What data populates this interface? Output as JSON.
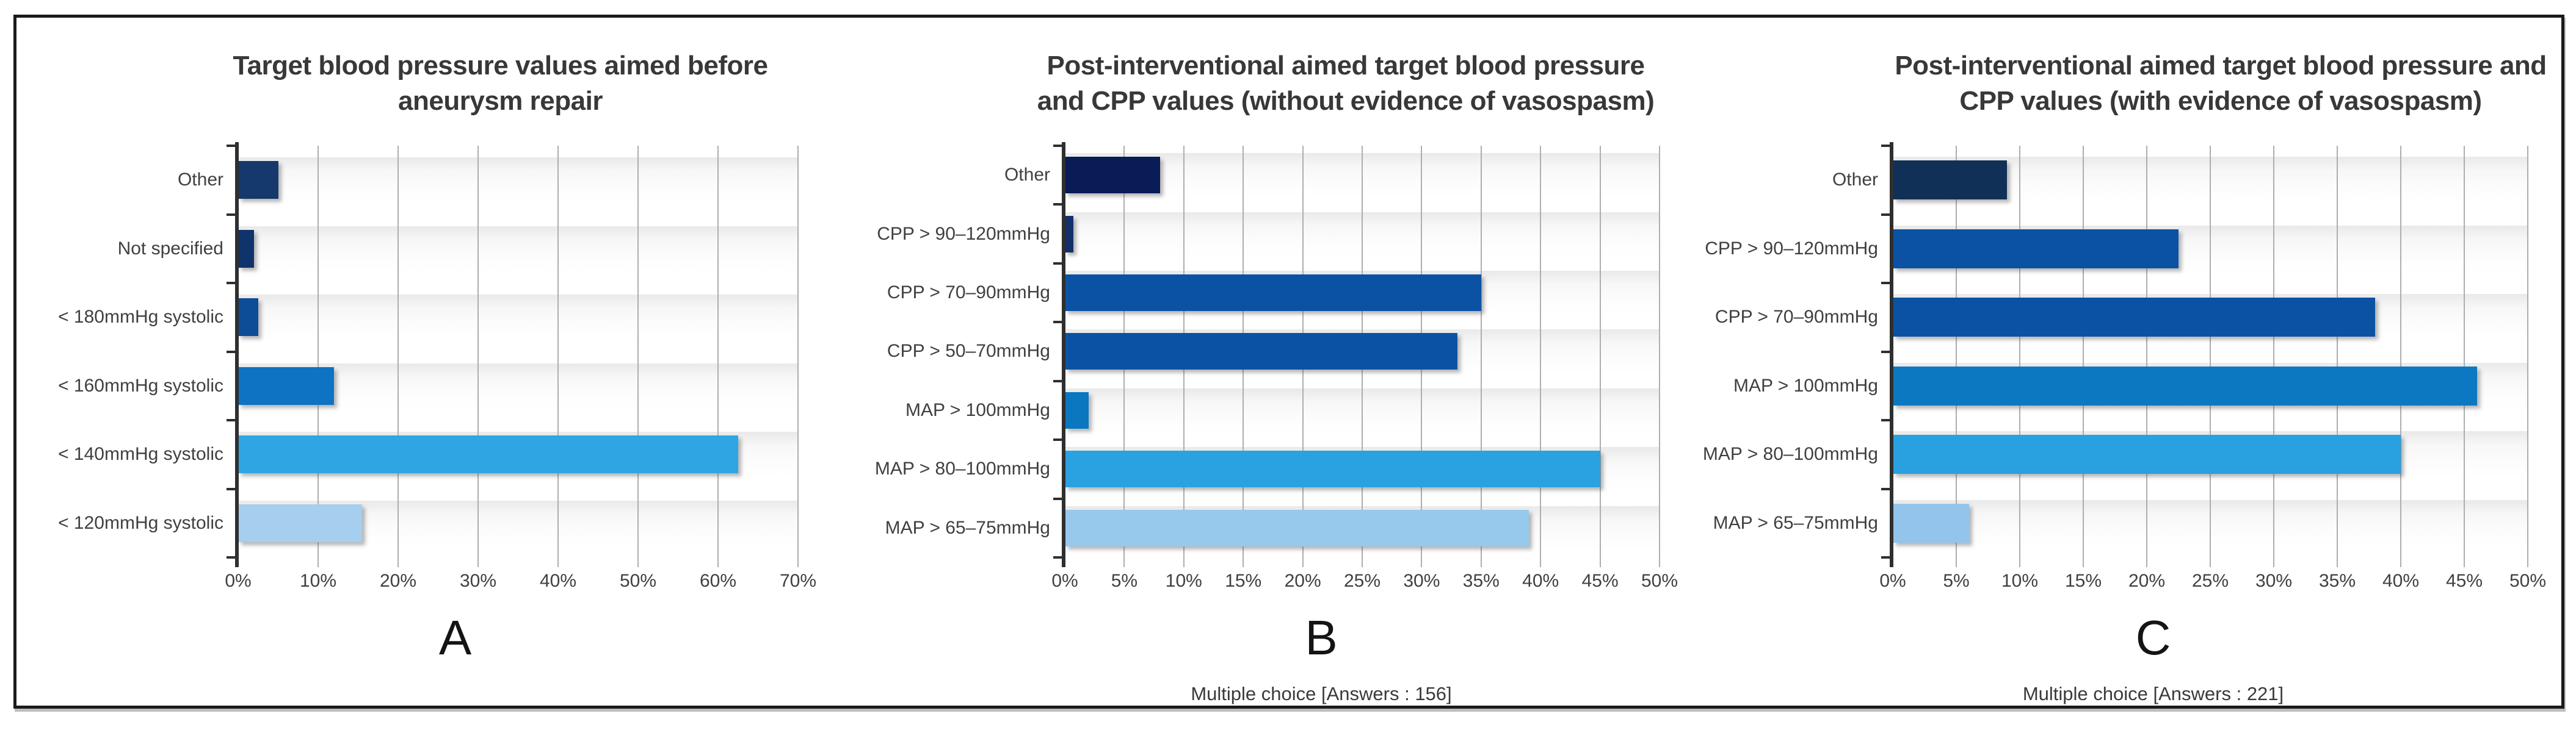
{
  "figure": {
    "background_color": "#ffffff",
    "border_color": "#1b1b1b",
    "panel_letters": [
      "A",
      "B",
      "C"
    ]
  },
  "chart_data": [
    {
      "type": "bar",
      "orientation": "horizontal",
      "panel_label": "A",
      "title": "Target blood pressure values aimed before\naneurysm repair",
      "categories": [
        "Other",
        "Not specified",
        "< 180mmHg systolic",
        "< 160mmHg systolic",
        "< 140mmHg systolic",
        "< 120mmHg systolic"
      ],
      "values": [
        5,
        2,
        2.5,
        12,
        62.5,
        15.5
      ],
      "value_unit": "%",
      "bar_colors": [
        "#15396C",
        "#0F336B",
        "#0D4C97",
        "#0D73C2",
        "#2FA5E4",
        "#A5CEEF"
      ],
      "xlabel": "",
      "ylabel": "",
      "xlim": [
        0,
        70
      ],
      "tick_step": 10,
      "tick_labels": [
        "0%",
        "10%",
        "20%",
        "30%",
        "40%",
        "50%",
        "60%",
        "70%"
      ],
      "grid": true,
      "legend": false,
      "caption": ""
    },
    {
      "type": "bar",
      "orientation": "horizontal",
      "panel_label": "B",
      "title": "Post-interventional aimed target blood pressure\nand CPP values (without evidence of vasospasm)",
      "categories": [
        "Other",
        "CPP > 90–120mmHg",
        "CPP > 70–90mmHg",
        "CPP > 50–70mmHg",
        "MAP > 100mmHg",
        "MAP > 80–100mmHg",
        "MAP > 65–75mmHg"
      ],
      "values": [
        8,
        0.7,
        35,
        33,
        2,
        45,
        39
      ],
      "value_unit": "%",
      "bar_colors": [
        "#0A1C55",
        "#13306B",
        "#0C52A4",
        "#0C52A4",
        "#0B77C0",
        "#2AA2E2",
        "#97C9ED"
      ],
      "xlabel": "",
      "ylabel": "",
      "xlim": [
        0,
        50
      ],
      "tick_step": 5,
      "tick_labels": [
        "0%",
        "5%",
        "10%",
        "15%",
        "20%",
        "25%",
        "30%",
        "35%",
        "40%",
        "45%",
        "50%"
      ],
      "grid": true,
      "legend": false,
      "caption": "Multiple choice [Answers : 156]"
    },
    {
      "type": "bar",
      "orientation": "horizontal",
      "panel_label": "C",
      "title": "Post-interventional aimed target blood pressure and\nCPP values (with evidence of vasospasm)",
      "categories": [
        "Other",
        "CPP > 90–120mmHg",
        "CPP > 70–90mmHg",
        "MAP > 100mmHg",
        "MAP > 80–100mmHg",
        "MAP > 65–75mmHg"
      ],
      "values": [
        9,
        22.5,
        38,
        46,
        40,
        6
      ],
      "value_unit": "%",
      "bar_colors": [
        "#103058",
        "#0C52A4",
        "#0C52A4",
        "#0B78C1",
        "#29A0E0",
        "#92C4EC"
      ],
      "xlabel": "",
      "ylabel": "",
      "xlim": [
        0,
        50
      ],
      "tick_step": 5,
      "tick_labels": [
        "0%",
        "5%",
        "10%",
        "15%",
        "20%",
        "25%",
        "30%",
        "35%",
        "40%",
        "45%",
        "50%"
      ],
      "grid": true,
      "legend": false,
      "caption": "Multiple choice [Answers : 221]"
    }
  ]
}
